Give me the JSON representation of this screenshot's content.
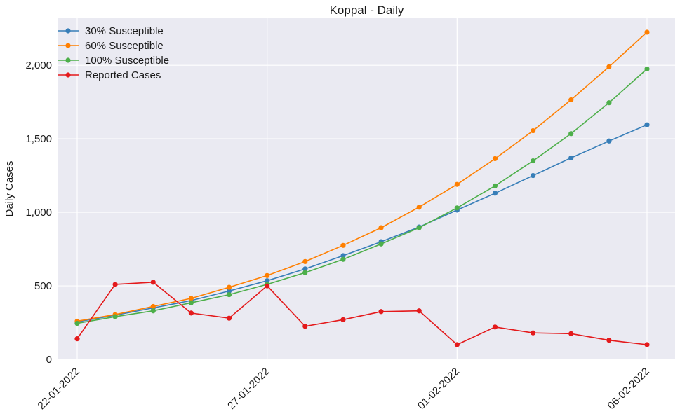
{
  "chart_data": {
    "type": "line",
    "title": "Koppal - Daily",
    "xlabel": "",
    "ylabel": "Daily Cases",
    "x": [
      "22-01-2022",
      "23-01-2022",
      "24-01-2022",
      "25-01-2022",
      "26-01-2022",
      "27-01-2022",
      "28-01-2022",
      "29-01-2022",
      "30-01-2022",
      "31-01-2022",
      "01-02-2022",
      "02-02-2022",
      "03-02-2022",
      "04-02-2022",
      "05-02-2022",
      "06-02-2022"
    ],
    "x_tick_labels": [
      "22-01-2022",
      "27-01-2022",
      "01-02-2022",
      "06-02-2022"
    ],
    "y_tick_labels": [
      "0",
      "500",
      "1,000",
      "1,500",
      "2,000"
    ],
    "y_ticks": [
      0,
      500,
      1000,
      1500,
      2000
    ],
    "ylim": [
      0,
      2320
    ],
    "grid": true,
    "legend_position": "top-left",
    "series": [
      {
        "name": "30% Susceptible",
        "color": "#377eb8",
        "values": [
          255,
          300,
          350,
          400,
          465,
          535,
          615,
          705,
          800,
          900,
          1015,
          1130,
          1250,
          1370,
          1485,
          1595
        ]
      },
      {
        "name": "60% Susceptible",
        "color": "#ff7f00",
        "values": [
          260,
          305,
          360,
          415,
          490,
          570,
          665,
          775,
          895,
          1035,
          1190,
          1365,
          1555,
          1765,
          1990,
          2225
        ]
      },
      {
        "name": "100% Susceptible",
        "color": "#4daf4a",
        "values": [
          245,
          290,
          330,
          385,
          440,
          510,
          590,
          680,
          785,
          895,
          1030,
          1180,
          1350,
          1535,
          1745,
          1975
        ]
      },
      {
        "name": "Reported Cases",
        "color": "#e41a1c",
        "values": [
          140,
          510,
          525,
          315,
          280,
          500,
          225,
          270,
          325,
          330,
          100,
          220,
          180,
          175,
          130,
          100
        ]
      }
    ]
  }
}
